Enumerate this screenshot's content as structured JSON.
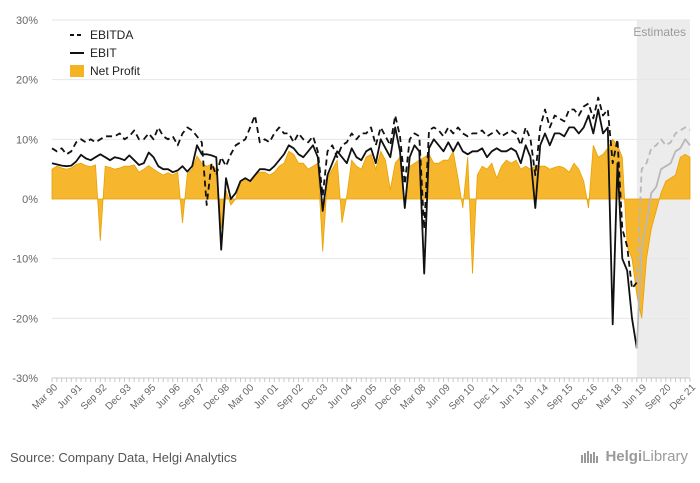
{
  "chart_data": {
    "type": "area",
    "title": "",
    "xlabel": "",
    "ylabel": "",
    "ylim": [
      -30,
      30
    ],
    "yticks": [
      -30,
      -20,
      -10,
      0,
      10,
      20,
      30
    ],
    "ytick_labels": [
      "-30%",
      "-20%",
      "-10%",
      "0%",
      "10%",
      "20%",
      "30%"
    ],
    "xtick_labels": [
      "Mar 90",
      "Jun 91",
      "Sep 92",
      "Dec 93",
      "Mar 95",
      "Jun 96",
      "Sep 97",
      "Dec 98",
      "Mar 00",
      "Jun 01",
      "Sep 02",
      "Dec 03",
      "Jun 04",
      "Sep 05",
      "Dec 06",
      "Mar 08",
      "Jun 09",
      "Sep 10",
      "Dec 11",
      "Jun 13",
      "Jun 14",
      "Sep 15",
      "Dec 16",
      "Mar 18",
      "Jun 19",
      "Sep 20",
      "Dec 21"
    ],
    "estimates_label": "Estimates",
    "estimates_from_index": 121,
    "legend_position": "top-left",
    "colors": {
      "ebitda": "#111111",
      "ebit": "#111111",
      "net_profit": "#f5b324",
      "estimates_bg": "#ececec",
      "estimate_line": "#b8b8b8",
      "grid": "#e6e6e6"
    },
    "series": [
      {
        "name": "EBITDA",
        "style": "dashed",
        "values": [
          8.5,
          8,
          8.5,
          7.5,
          8,
          9.5,
          10,
          9.5,
          10,
          9.5,
          10,
          10.5,
          10.5,
          10.5,
          11,
          10,
          10.5,
          11.5,
          10,
          10,
          11,
          10,
          12,
          10.5,
          10,
          10.5,
          9,
          11,
          12,
          11.5,
          10.5,
          9.5,
          -1,
          6,
          4,
          7,
          5.5,
          7.5,
          9,
          9.5,
          10,
          12,
          14,
          9.5,
          10,
          9.5,
          11,
          12,
          11,
          11,
          9.5,
          11,
          10,
          9.5,
          10.5,
          8,
          0.5,
          8,
          9,
          7,
          9,
          9.5,
          11,
          10,
          11,
          11,
          12,
          9,
          12,
          10.5,
          9,
          14,
          10.5,
          2.5,
          10,
          11,
          10.5,
          -5,
          11.5,
          12,
          11.5,
          10.5,
          12,
          11,
          12,
          11,
          10.5,
          11,
          11,
          11.5,
          10.5,
          11,
          11.5,
          10.5,
          11,
          11.5,
          11,
          9,
          12,
          10,
          4,
          12,
          15,
          12,
          14,
          13.5,
          13,
          15,
          15,
          14,
          15.5,
          16,
          13.5,
          17,
          14,
          15,
          6,
          10,
          -5,
          -8,
          -15,
          -14,
          5,
          6,
          8.5,
          9,
          10,
          9,
          9.5,
          11,
          11.5,
          12,
          11.5
        ]
      },
      {
        "name": "EBIT",
        "style": "solid",
        "values": [
          6,
          5.8,
          5.6,
          5.5,
          5.6,
          6.3,
          7.4,
          6.8,
          6.5,
          7,
          7.5,
          7,
          6.5,
          7,
          6.8,
          6.5,
          7.3,
          6.5,
          5.7,
          6,
          7.8,
          7,
          5.5,
          5,
          5,
          4.5,
          4.8,
          5.5,
          4.6,
          5.5,
          9,
          7.5,
          7.5,
          7.3,
          7,
          -8.5,
          3.5,
          0,
          1,
          3,
          3.5,
          3,
          4,
          5,
          5,
          4.8,
          5.5,
          6.5,
          7.5,
          9,
          8.5,
          7.5,
          7,
          8,
          9,
          7,
          -2,
          4,
          6,
          8,
          7,
          6,
          8.5,
          7,
          6.5,
          8,
          8.5,
          6,
          10,
          8.5,
          7,
          12,
          8,
          -1.5,
          7,
          9,
          8,
          -12.5,
          8.5,
          10,
          9,
          8,
          9.5,
          8,
          9.5,
          8,
          7.5,
          8,
          8,
          8.5,
          7,
          8,
          8.5,
          8,
          8,
          8.5,
          8,
          6,
          9,
          7,
          -1.5,
          9,
          11,
          9,
          11,
          11,
          10.5,
          12,
          12,
          11,
          12,
          14,
          11,
          15,
          11,
          12,
          -21,
          6,
          -10,
          -12,
          -20,
          -25,
          -8,
          -4,
          1,
          2,
          5,
          5.5,
          6,
          8,
          8.5,
          10,
          9
        ]
      },
      {
        "name": "Net Profit",
        "style": "area",
        "values": [
          5,
          5.5,
          5.2,
          5,
          5.2,
          5.8,
          6,
          5.6,
          5.4,
          5.7,
          -7,
          5.5,
          5.3,
          5,
          5.2,
          5.5,
          5.5,
          5.7,
          4.5,
          5,
          5.6,
          5,
          4.5,
          4,
          4.4,
          4,
          4.5,
          -4,
          4.2,
          5,
          7.2,
          6,
          5.5,
          5.8,
          5,
          -5,
          1.5,
          -1,
          0,
          3,
          3.5,
          3,
          4,
          4.5,
          4.5,
          4,
          4.5,
          5.5,
          6,
          8,
          7.5,
          6,
          6,
          5,
          5.5,
          6,
          -8.8,
          3.5,
          5,
          6.5,
          -4,
          0.5,
          6.5,
          5.5,
          5,
          7,
          7.5,
          5,
          8,
          6.5,
          1.5,
          6,
          7,
          -1,
          5.5,
          6,
          6.5,
          7,
          7.5,
          6,
          6,
          6.5,
          6.5,
          8,
          3.5,
          -1.5,
          7,
          -12.5,
          4,
          5.5,
          5,
          6,
          3.5,
          5.5,
          6.5,
          6,
          6.5,
          5,
          5.5,
          5,
          5.5,
          5.5,
          5.5,
          5,
          5.3,
          5.5,
          5.2,
          4.5,
          6,
          5,
          3,
          -1.5,
          9,
          7,
          7.5,
          8.5,
          10,
          9,
          7,
          -8,
          -10,
          -16,
          -20,
          -10,
          -5,
          -2,
          1,
          3,
          3.5,
          4,
          7,
          7.5,
          7,
          5
        ]
      }
    ]
  },
  "footer": {
    "source": "Source: Company Data, Helgi Analytics",
    "logo_prefix": "Helgi",
    "logo_suffix": "Library"
  }
}
